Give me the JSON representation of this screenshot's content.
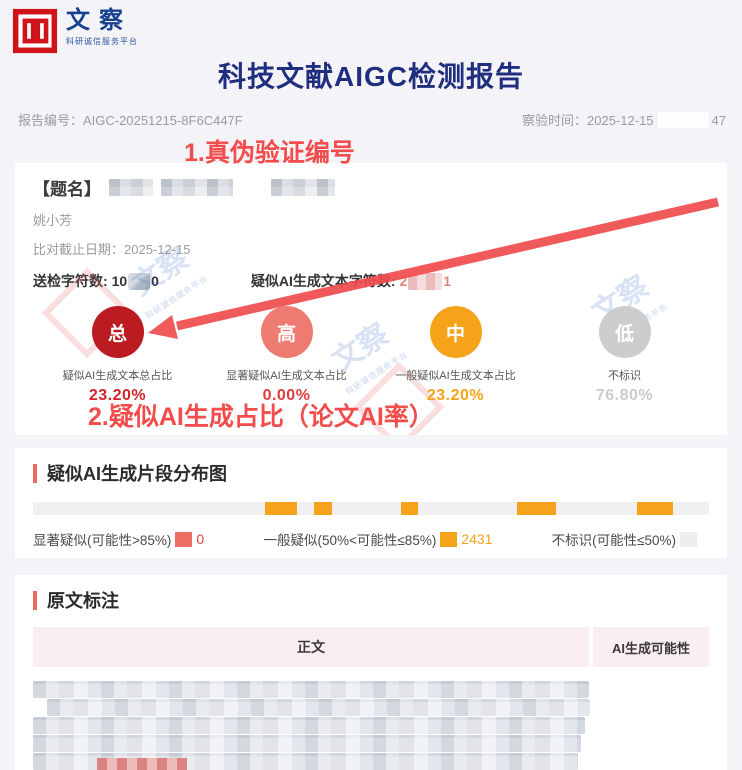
{
  "brand": {
    "logo_text": "文察",
    "logo_subtitle": "科研诚信服务平台"
  },
  "header": {
    "title": "科技文献AIGC检测报告",
    "report_no_label": "报告编号：",
    "report_no": "AIGC-20251215-8F6C447F",
    "check_time_label": "察验时间：",
    "check_time_prefix": "2025-12-15",
    "check_time_suffix": "47"
  },
  "annotations": {
    "note1": "1.真伪验证编号",
    "note2": "2.疑似AI生成占比（论文AI率）"
  },
  "doc_info": {
    "title_label": "【题名】",
    "author": "姚小芳",
    "cutoff_label": "比对截止日期：",
    "cutoff_date": "2025-12-15",
    "submitted_label": "送检字符数:",
    "submitted_prefix": "10",
    "submitted_suffix": "0",
    "ai_chars_label": "疑似AI生成文本字符数:",
    "ai_chars_prefix": "2",
    "ai_chars_suffix": "1"
  },
  "metrics": [
    {
      "badge": "总",
      "label": "疑似AI生成文本总占比",
      "value": "23.20%",
      "color": "#bb1b21",
      "value_color": "#d2242b"
    },
    {
      "badge": "高",
      "label": "显著疑似AI生成文本占比",
      "value": "0.00%",
      "color": "#ee7b72",
      "value_color": "#e23c40"
    },
    {
      "badge": "中",
      "label": "一般疑似AI生成文本占比",
      "value": "23.20%",
      "color": "#f5a318",
      "value_color": "#f5a318"
    },
    {
      "badge": "低",
      "label": "不标识",
      "value": "76.80%",
      "color": "#cdcdcd",
      "value_color": "#cbcbcb"
    }
  ],
  "distribution": {
    "section_title": "疑似AI生成片段分布图",
    "bar_background": "#f0f0f2",
    "segment_color": "#f5a31a",
    "segments": [
      {
        "left_pct": 34.3,
        "width_pct": 4.7
      },
      {
        "left_pct": 41.6,
        "width_pct": 2.6
      },
      {
        "left_pct": 54.4,
        "width_pct": 2.5
      },
      {
        "left_pct": 71.6,
        "width_pct": 5.7
      },
      {
        "left_pct": 89.3,
        "width_pct": 5.4
      }
    ],
    "legend": [
      {
        "label": "显著疑似(可能性>85%)",
        "value": "0",
        "color": "#ee6e63",
        "value_color": "#e23c40"
      },
      {
        "label": "一般疑似(50%<可能性≤85%)",
        "value": "2431",
        "color": "#f5a318",
        "value_color": "#f5a318"
      },
      {
        "label": "不标识(可能性≤50%)",
        "value": "",
        "color": "#ededef",
        "value_color": "#999999"
      }
    ]
  },
  "annotation_table": {
    "section_title": "原文标注",
    "col_main": "正文",
    "col_side": "AI生成可能性"
  }
}
